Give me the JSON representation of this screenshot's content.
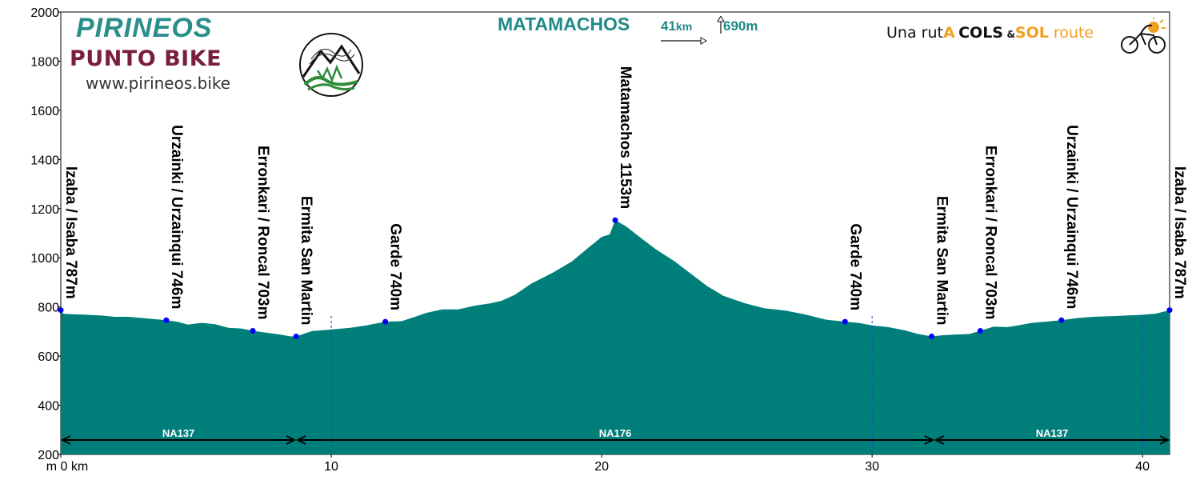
{
  "header": {
    "brand": "PIRINEOS",
    "brand_sub": "PUNTO BIKE",
    "website": "www.pirineos.bike",
    "route_title": "MATAMACHOS",
    "distance_value": "41",
    "distance_unit": "km",
    "climb": "690m",
    "tagline_prefix": "Una rut",
    "tagline_a": "A",
    "tagline_cols": "COLS",
    "tagline_amp": "&",
    "tagline_sol": "SOL",
    "tagline_route": " route"
  },
  "colors": {
    "fill": "#007f7a",
    "brand": "#2a8f8a",
    "brand_sub": "#7a1f3a",
    "marker": "#0000ff",
    "accent": "#f0a020"
  },
  "chart_data": {
    "type": "area",
    "title": "MATAMACHOS",
    "xlabel": "km",
    "ylabel": "m",
    "x_range": [
      0,
      41
    ],
    "ylim": [
      200,
      2000
    ],
    "y_ticks": [
      200,
      400,
      600,
      800,
      1000,
      1200,
      1400,
      1600,
      1800,
      2000
    ],
    "x_ticks": [
      {
        "value": 0,
        "label": "m 0 km"
      },
      {
        "value": 10,
        "label": "10"
      },
      {
        "value": 20,
        "label": "20"
      },
      {
        "value": 30,
        "label": "30"
      },
      {
        "value": 40,
        "label": "40"
      }
    ],
    "profile": [
      [
        0,
        787
      ],
      [
        0.1,
        772
      ],
      [
        0.5,
        770
      ],
      [
        1,
        768
      ],
      [
        1.5,
        765
      ],
      [
        2,
        760
      ],
      [
        2.5,
        760
      ],
      [
        3,
        755
      ],
      [
        3.5,
        750
      ],
      [
        3.9,
        746
      ],
      [
        4.3,
        740
      ],
      [
        4.7,
        728
      ],
      [
        5.2,
        735
      ],
      [
        5.7,
        730
      ],
      [
        6.2,
        715
      ],
      [
        6.7,
        712
      ],
      [
        7.1,
        703
      ],
      [
        7.6,
        695
      ],
      [
        8.1,
        688
      ],
      [
        8.5,
        680
      ],
      [
        8.7,
        680
      ],
      [
        9.3,
        702
      ],
      [
        10,
        708
      ],
      [
        10.7,
        715
      ],
      [
        11.3,
        725
      ],
      [
        12,
        740
      ],
      [
        12.6,
        742
      ],
      [
        13.1,
        760
      ],
      [
        13.5,
        775
      ],
      [
        14.1,
        790
      ],
      [
        14.7,
        790
      ],
      [
        15.3,
        805
      ],
      [
        15.9,
        815
      ],
      [
        16.3,
        825
      ],
      [
        16.8,
        850
      ],
      [
        17.4,
        895
      ],
      [
        18.2,
        940
      ],
      [
        18.9,
        985
      ],
      [
        19.5,
        1040
      ],
      [
        20,
        1085
      ],
      [
        20.3,
        1095
      ],
      [
        20.5,
        1153
      ],
      [
        20.9,
        1128
      ],
      [
        21.4,
        1085
      ],
      [
        22,
        1035
      ],
      [
        22.7,
        985
      ],
      [
        23.3,
        935
      ],
      [
        23.9,
        885
      ],
      [
        24.5,
        845
      ],
      [
        25.3,
        815
      ],
      [
        26,
        795
      ],
      [
        26.8,
        785
      ],
      [
        27.5,
        770
      ],
      [
        28.3,
        748
      ],
      [
        29,
        740
      ],
      [
        29.5,
        735
      ],
      [
        30,
        725
      ],
      [
        30.6,
        718
      ],
      [
        31.2,
        705
      ],
      [
        31.7,
        690
      ],
      [
        32.2,
        680
      ],
      [
        32.6,
        685
      ],
      [
        33.1,
        688
      ],
      [
        33.6,
        690
      ],
      [
        34,
        703
      ],
      [
        34.5,
        720
      ],
      [
        35,
        718
      ],
      [
        35.4,
        725
      ],
      [
        35.9,
        735
      ],
      [
        36.4,
        740
      ],
      [
        37,
        746
      ],
      [
        37.6,
        755
      ],
      [
        38.2,
        760
      ],
      [
        38.8,
        762
      ],
      [
        39.4,
        765
      ],
      [
        40,
        768
      ],
      [
        40.5,
        773
      ],
      [
        41,
        787
      ]
    ],
    "waypoints": [
      {
        "km": 0,
        "elev": 787,
        "label": "Izaba / Isaba 787m"
      },
      {
        "km": 3.9,
        "elev": 746,
        "label": "Urzainki / Urzainqui 746m"
      },
      {
        "km": 7.1,
        "elev": 703,
        "label": "Erronkari / Roncal 703m"
      },
      {
        "km": 8.7,
        "elev": 680,
        "label": "Ermita San Martin"
      },
      {
        "km": 12,
        "elev": 740,
        "label": "Garde 740m"
      },
      {
        "km": 20.5,
        "elev": 1153,
        "label": "Matamachos 1153m"
      },
      {
        "km": 29,
        "elev": 740,
        "label": "Garde 740m"
      },
      {
        "km": 32.2,
        "elev": 680,
        "label": "Ermita San Martin"
      },
      {
        "km": 34,
        "elev": 703,
        "label": "Erronkari / Roncal 703m"
      },
      {
        "km": 37,
        "elev": 746,
        "label": "Urzainki / Urzainqui 746m"
      },
      {
        "km": 41,
        "elev": 787,
        "label": "Izaba / Isaba 787m"
      }
    ],
    "segments": [
      {
        "from": 0,
        "to": 8.7,
        "label": "NA137"
      },
      {
        "from": 8.7,
        "to": 32.3,
        "label": "NA176"
      },
      {
        "from": 32.3,
        "to": 41,
        "label": "NA137"
      }
    ],
    "dashed_x": [
      10,
      30,
      40
    ]
  }
}
